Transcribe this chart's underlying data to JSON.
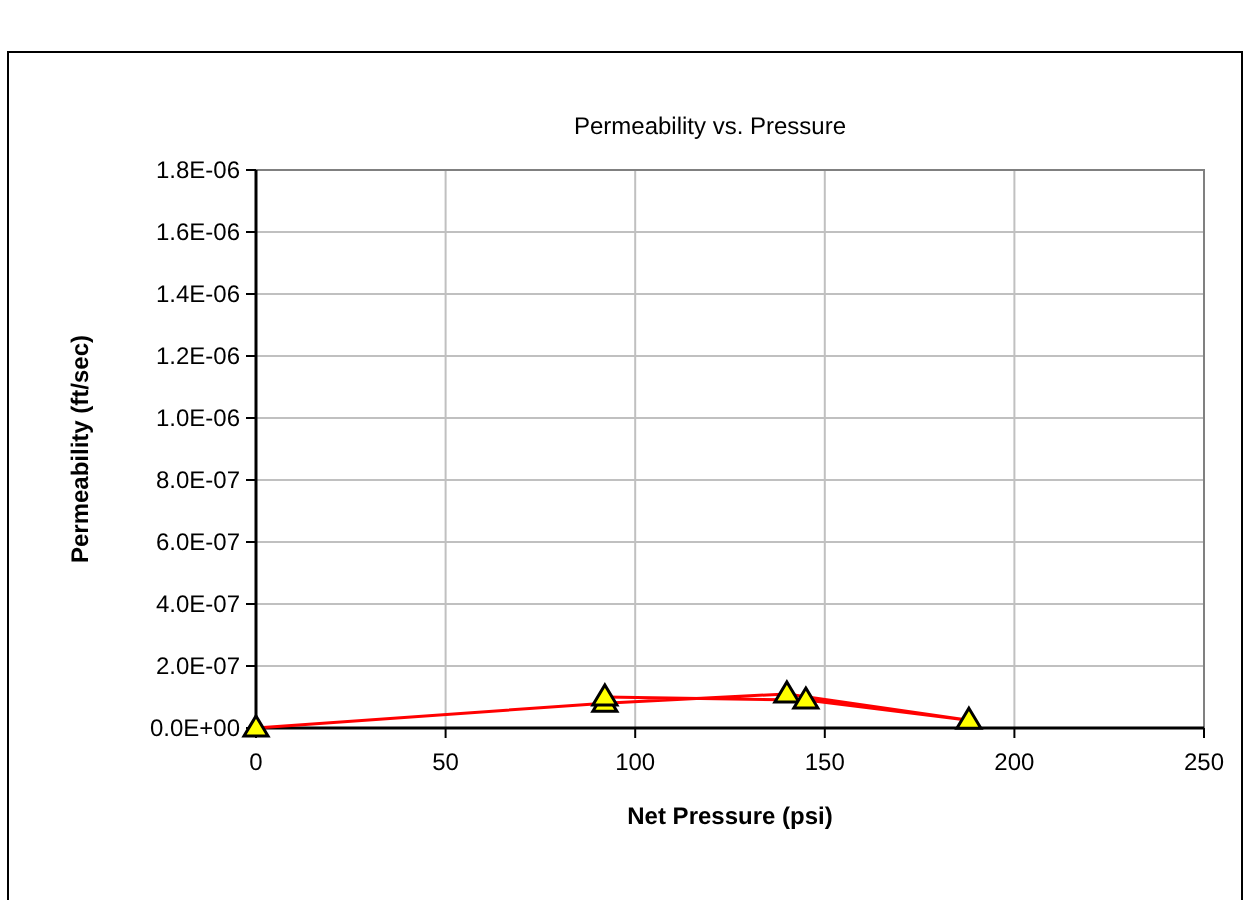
{
  "chart_data": {
    "type": "line",
    "title": "Permeability vs. Pressure",
    "xlabel": "Net Pressure (psi)",
    "ylabel": "Permeability (ft/sec)",
    "series": [
      {
        "color": "#ff0000",
        "x": [
          0,
          92,
          140,
          188,
          145,
          92
        ],
        "values": [
          0,
          8e-08,
          1.1e-07,
          2.5e-08,
          9e-08,
          1e-07
        ]
      }
    ],
    "xlim": [
      0,
      250
    ],
    "xticks": [
      0,
      50,
      100,
      150,
      200,
      250
    ],
    "ylim": [
      0,
      1.8e-06
    ],
    "yticks": [
      {
        "value": 0,
        "label": "0.0E+00"
      },
      {
        "value": 2e-07,
        "label": "2.0E-07"
      },
      {
        "value": 4e-07,
        "label": "4.0E-07"
      },
      {
        "value": 6e-07,
        "label": "6.0E-07"
      },
      {
        "value": 8e-07,
        "label": "8.0E-07"
      },
      {
        "value": 1e-06,
        "label": "1.0E-06"
      },
      {
        "value": 1.2e-06,
        "label": "1.2E-06"
      },
      {
        "value": 1.4e-06,
        "label": "1.4E-06"
      },
      {
        "value": 1.6e-06,
        "label": "1.6E-06"
      },
      {
        "value": 1.8e-06,
        "label": "1.8E-06"
      }
    ],
    "grid": true,
    "marker": "triangle",
    "line_style": "solid"
  }
}
